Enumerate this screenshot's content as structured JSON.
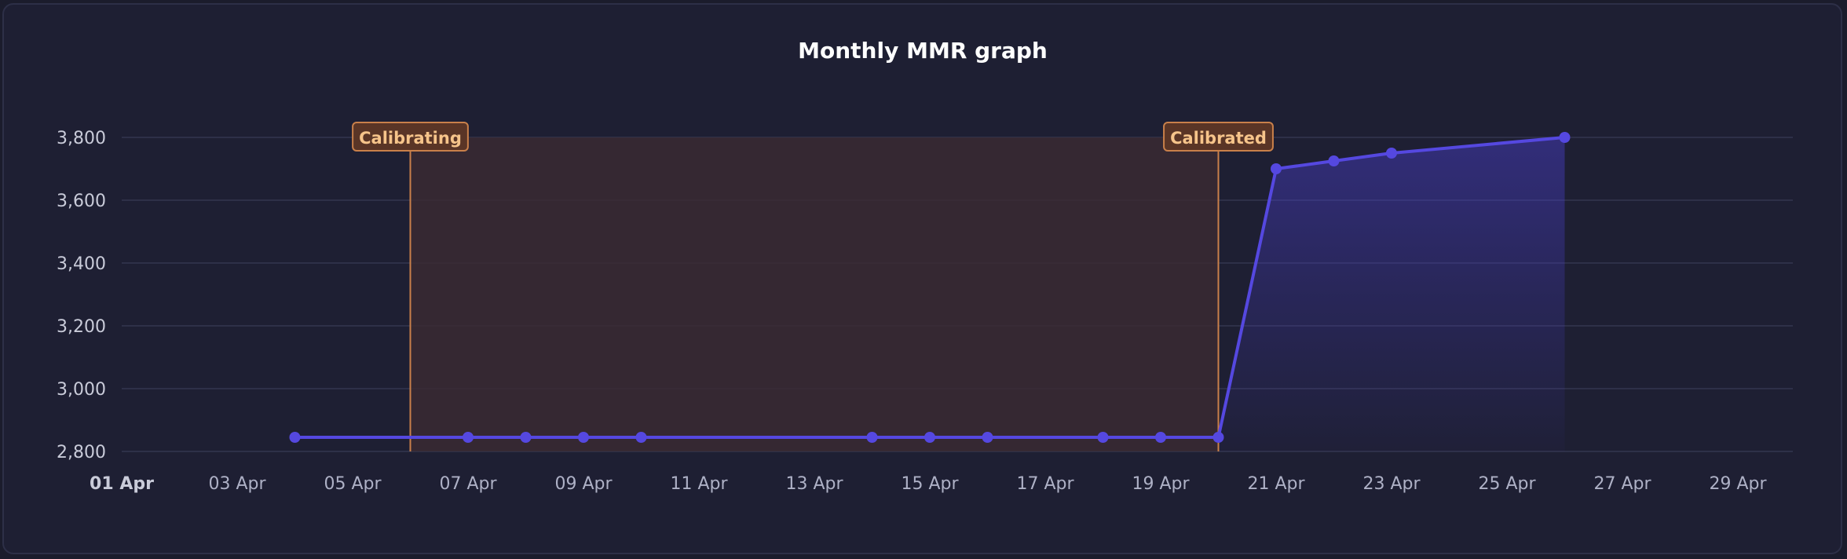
{
  "chart_data": {
    "type": "line",
    "title": "Monthly MMR graph",
    "x_ticks": [
      "01 Apr",
      "03 Apr",
      "05 Apr",
      "07 Apr",
      "09 Apr",
      "11 Apr",
      "13 Apr",
      "15 Apr",
      "17 Apr",
      "19 Apr",
      "21 Apr",
      "23 Apr",
      "25 Apr",
      "27 Apr",
      "29 Apr"
    ],
    "x_tick_bold": "01 Apr",
    "xlim": [
      "01 Apr",
      "30 Apr"
    ],
    "ylim": [
      2800,
      3800
    ],
    "y_ticks": [
      2800,
      3000,
      3200,
      3400,
      3600,
      3800
    ],
    "y_tick_labels": [
      "2,800",
      "3,000",
      "3,200",
      "3,400",
      "3,600",
      "3,800"
    ],
    "grid": true,
    "series": [
      {
        "color": "#5548e0",
        "points": [
          {
            "x": "04 Apr",
            "y": 2845
          },
          {
            "x": "07 Apr",
            "y": 2845
          },
          {
            "x": "08 Apr",
            "y": 2845
          },
          {
            "x": "09 Apr",
            "y": 2845
          },
          {
            "x": "10 Apr",
            "y": 2845
          },
          {
            "x": "14 Apr",
            "y": 2845
          },
          {
            "x": "15 Apr",
            "y": 2845
          },
          {
            "x": "16 Apr",
            "y": 2845
          },
          {
            "x": "18 Apr",
            "y": 2845
          },
          {
            "x": "19 Apr",
            "y": 2845
          },
          {
            "x": "20 Apr",
            "y": 2845
          },
          {
            "x": "21 Apr",
            "y": 3700
          },
          {
            "x": "22 Apr",
            "y": 3725
          },
          {
            "x": "23 Apr",
            "y": 3750
          },
          {
            "x": "26 Apr",
            "y": 3800
          }
        ]
      }
    ],
    "area_range": {
      "start": "20 Apr",
      "end": "26 Apr"
    },
    "annotations": [
      {
        "label": "Calibrating",
        "x": "06 Apr",
        "color": "#c9804a"
      },
      {
        "label": "Calibrated",
        "x": "20 Apr",
        "color": "#c9804a"
      }
    ],
    "shaded_region": {
      "start": "06 Apr",
      "end": "20 Apr",
      "color": "#3a2a33"
    }
  }
}
